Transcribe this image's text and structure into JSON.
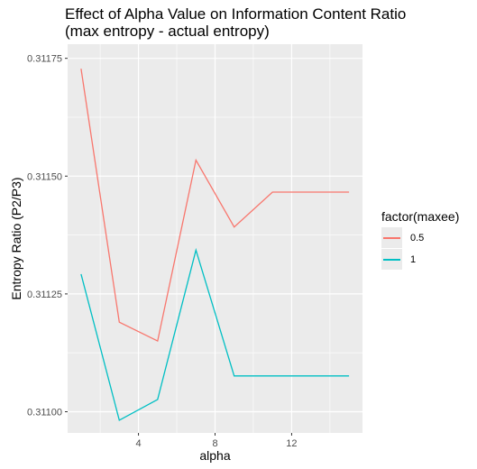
{
  "title_line1": "Effect of Alpha Value on Information Content Ratio",
  "title_line2": "(max entropy - actual entropy)",
  "legend": {
    "title": "factor(maxee)",
    "entries": [
      {
        "label": "0.5",
        "color": "#F8766D"
      },
      {
        "label": "1",
        "color": "#00BFC4"
      }
    ]
  },
  "chart_data": {
    "type": "line",
    "xlabel": "alpha",
    "ylabel": "Entropy Ratio (P2/P3)",
    "xlim": [
      0.3,
      15.7
    ],
    "ylim": [
      0.310955,
      0.31178
    ],
    "xticks": [
      4,
      8,
      12
    ],
    "yticks": [
      0.311,
      0.31125,
      0.3115,
      0.31175
    ],
    "ytick_labels": [
      "0.31100",
      "0.31125",
      "0.31150",
      "0.31175"
    ],
    "grid": true,
    "legend_position": "right",
    "x": [
      1,
      3,
      5,
      7,
      9,
      11,
      13,
      15
    ],
    "series": [
      {
        "name": "0.5",
        "color": "#F8766D",
        "values": [
          0.311728,
          0.31119,
          0.31115,
          0.311534,
          0.311392,
          0.311466,
          0.311466,
          0.311466
        ]
      },
      {
        "name": "1",
        "color": "#00BFC4",
        "values": [
          0.311292,
          0.310982,
          0.311026,
          0.311343,
          0.311076,
          0.311076,
          0.311076,
          0.311076
        ]
      }
    ]
  }
}
